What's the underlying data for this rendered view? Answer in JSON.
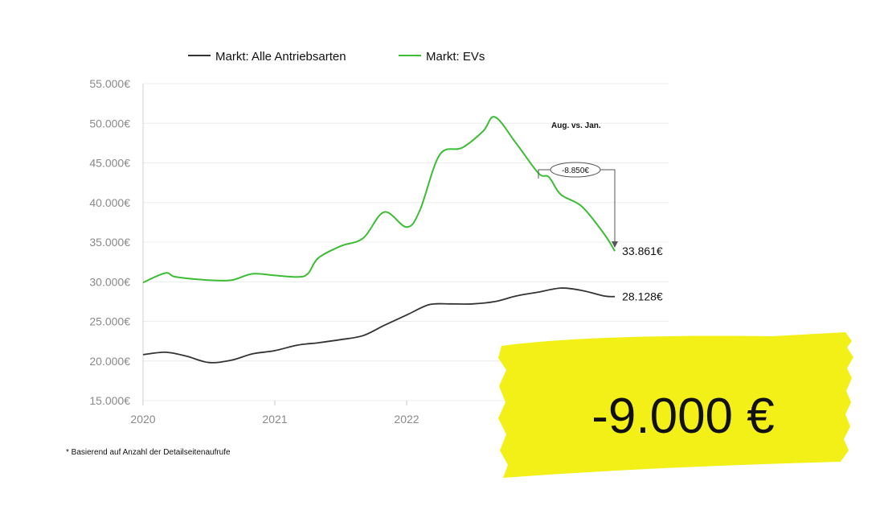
{
  "chart_data": {
    "type": "line",
    "ylim": [
      15000,
      55000
    ],
    "y_ticks": [
      {
        "value": 55000,
        "label": "55.000€"
      },
      {
        "value": 50000,
        "label": "50.000€"
      },
      {
        "value": 45000,
        "label": "45.000€"
      },
      {
        "value": 40000,
        "label": "40.000€"
      },
      {
        "value": 35000,
        "label": "35.000€"
      },
      {
        "value": 30000,
        "label": "30.000€"
      },
      {
        "value": 25000,
        "label": "25.000€"
      },
      {
        "value": 20000,
        "label": "20.000€"
      },
      {
        "value": 15000,
        "label": "15.000€"
      }
    ],
    "x_ticks": [
      {
        "value": 2020,
        "label": "2020"
      },
      {
        "value": 2021,
        "label": "2021"
      },
      {
        "value": 2022,
        "label": "2022"
      }
    ],
    "xlim": [
      2020,
      2023.6
    ],
    "grid": true,
    "legend_position": "top-center",
    "series": [
      {
        "name": "Markt: Alle Antriebsarten",
        "color": "#333333",
        "end_label": "28.128€",
        "points": [
          [
            2020.0,
            20800
          ],
          [
            2020.17,
            21100
          ],
          [
            2020.33,
            20600
          ],
          [
            2020.5,
            19800
          ],
          [
            2020.67,
            20100
          ],
          [
            2020.83,
            20900
          ],
          [
            2021.0,
            21300
          ],
          [
            2021.17,
            22000
          ],
          [
            2021.33,
            22300
          ],
          [
            2021.5,
            22700
          ],
          [
            2021.67,
            23200
          ],
          [
            2021.83,
            24500
          ],
          [
            2022.0,
            25800
          ],
          [
            2022.17,
            27100
          ],
          [
            2022.33,
            27200
          ],
          [
            2022.5,
            27200
          ],
          [
            2022.67,
            27500
          ],
          [
            2022.83,
            28200
          ],
          [
            2023.0,
            28700
          ],
          [
            2023.17,
            29200
          ],
          [
            2023.33,
            28900
          ],
          [
            2023.5,
            28200
          ],
          [
            2023.58,
            28128
          ]
        ]
      },
      {
        "name": "Markt: EVs",
        "color": "#3dbd35",
        "end_label": "33.861€",
        "points": [
          [
            2020.0,
            29900
          ],
          [
            2020.17,
            31100
          ],
          [
            2020.25,
            30600
          ],
          [
            2020.5,
            30200
          ],
          [
            2020.67,
            30200
          ],
          [
            2020.83,
            31000
          ],
          [
            2021.0,
            30800
          ],
          [
            2021.17,
            30600
          ],
          [
            2021.25,
            31000
          ],
          [
            2021.33,
            33000
          ],
          [
            2021.5,
            34500
          ],
          [
            2021.67,
            35500
          ],
          [
            2021.83,
            38800
          ],
          [
            2022.0,
            36900
          ],
          [
            2022.1,
            39000
          ],
          [
            2022.25,
            46000
          ],
          [
            2022.42,
            46900
          ],
          [
            2022.58,
            49000
          ],
          [
            2022.67,
            50800
          ],
          [
            2022.83,
            47500
          ],
          [
            2023.0,
            43700
          ],
          [
            2023.08,
            43200
          ],
          [
            2023.17,
            41000
          ],
          [
            2023.33,
            39500
          ],
          [
            2023.5,
            36000
          ],
          [
            2023.58,
            33861
          ]
        ]
      }
    ],
    "annotation": {
      "title": "Aug. vs. Jan.",
      "delta_label": "-8.850€"
    }
  },
  "footnote": "* Basierend auf Anzahl der Detailseitenaufrufe",
  "badge": {
    "text": "-9.000 €",
    "color": "#f3f017"
  }
}
